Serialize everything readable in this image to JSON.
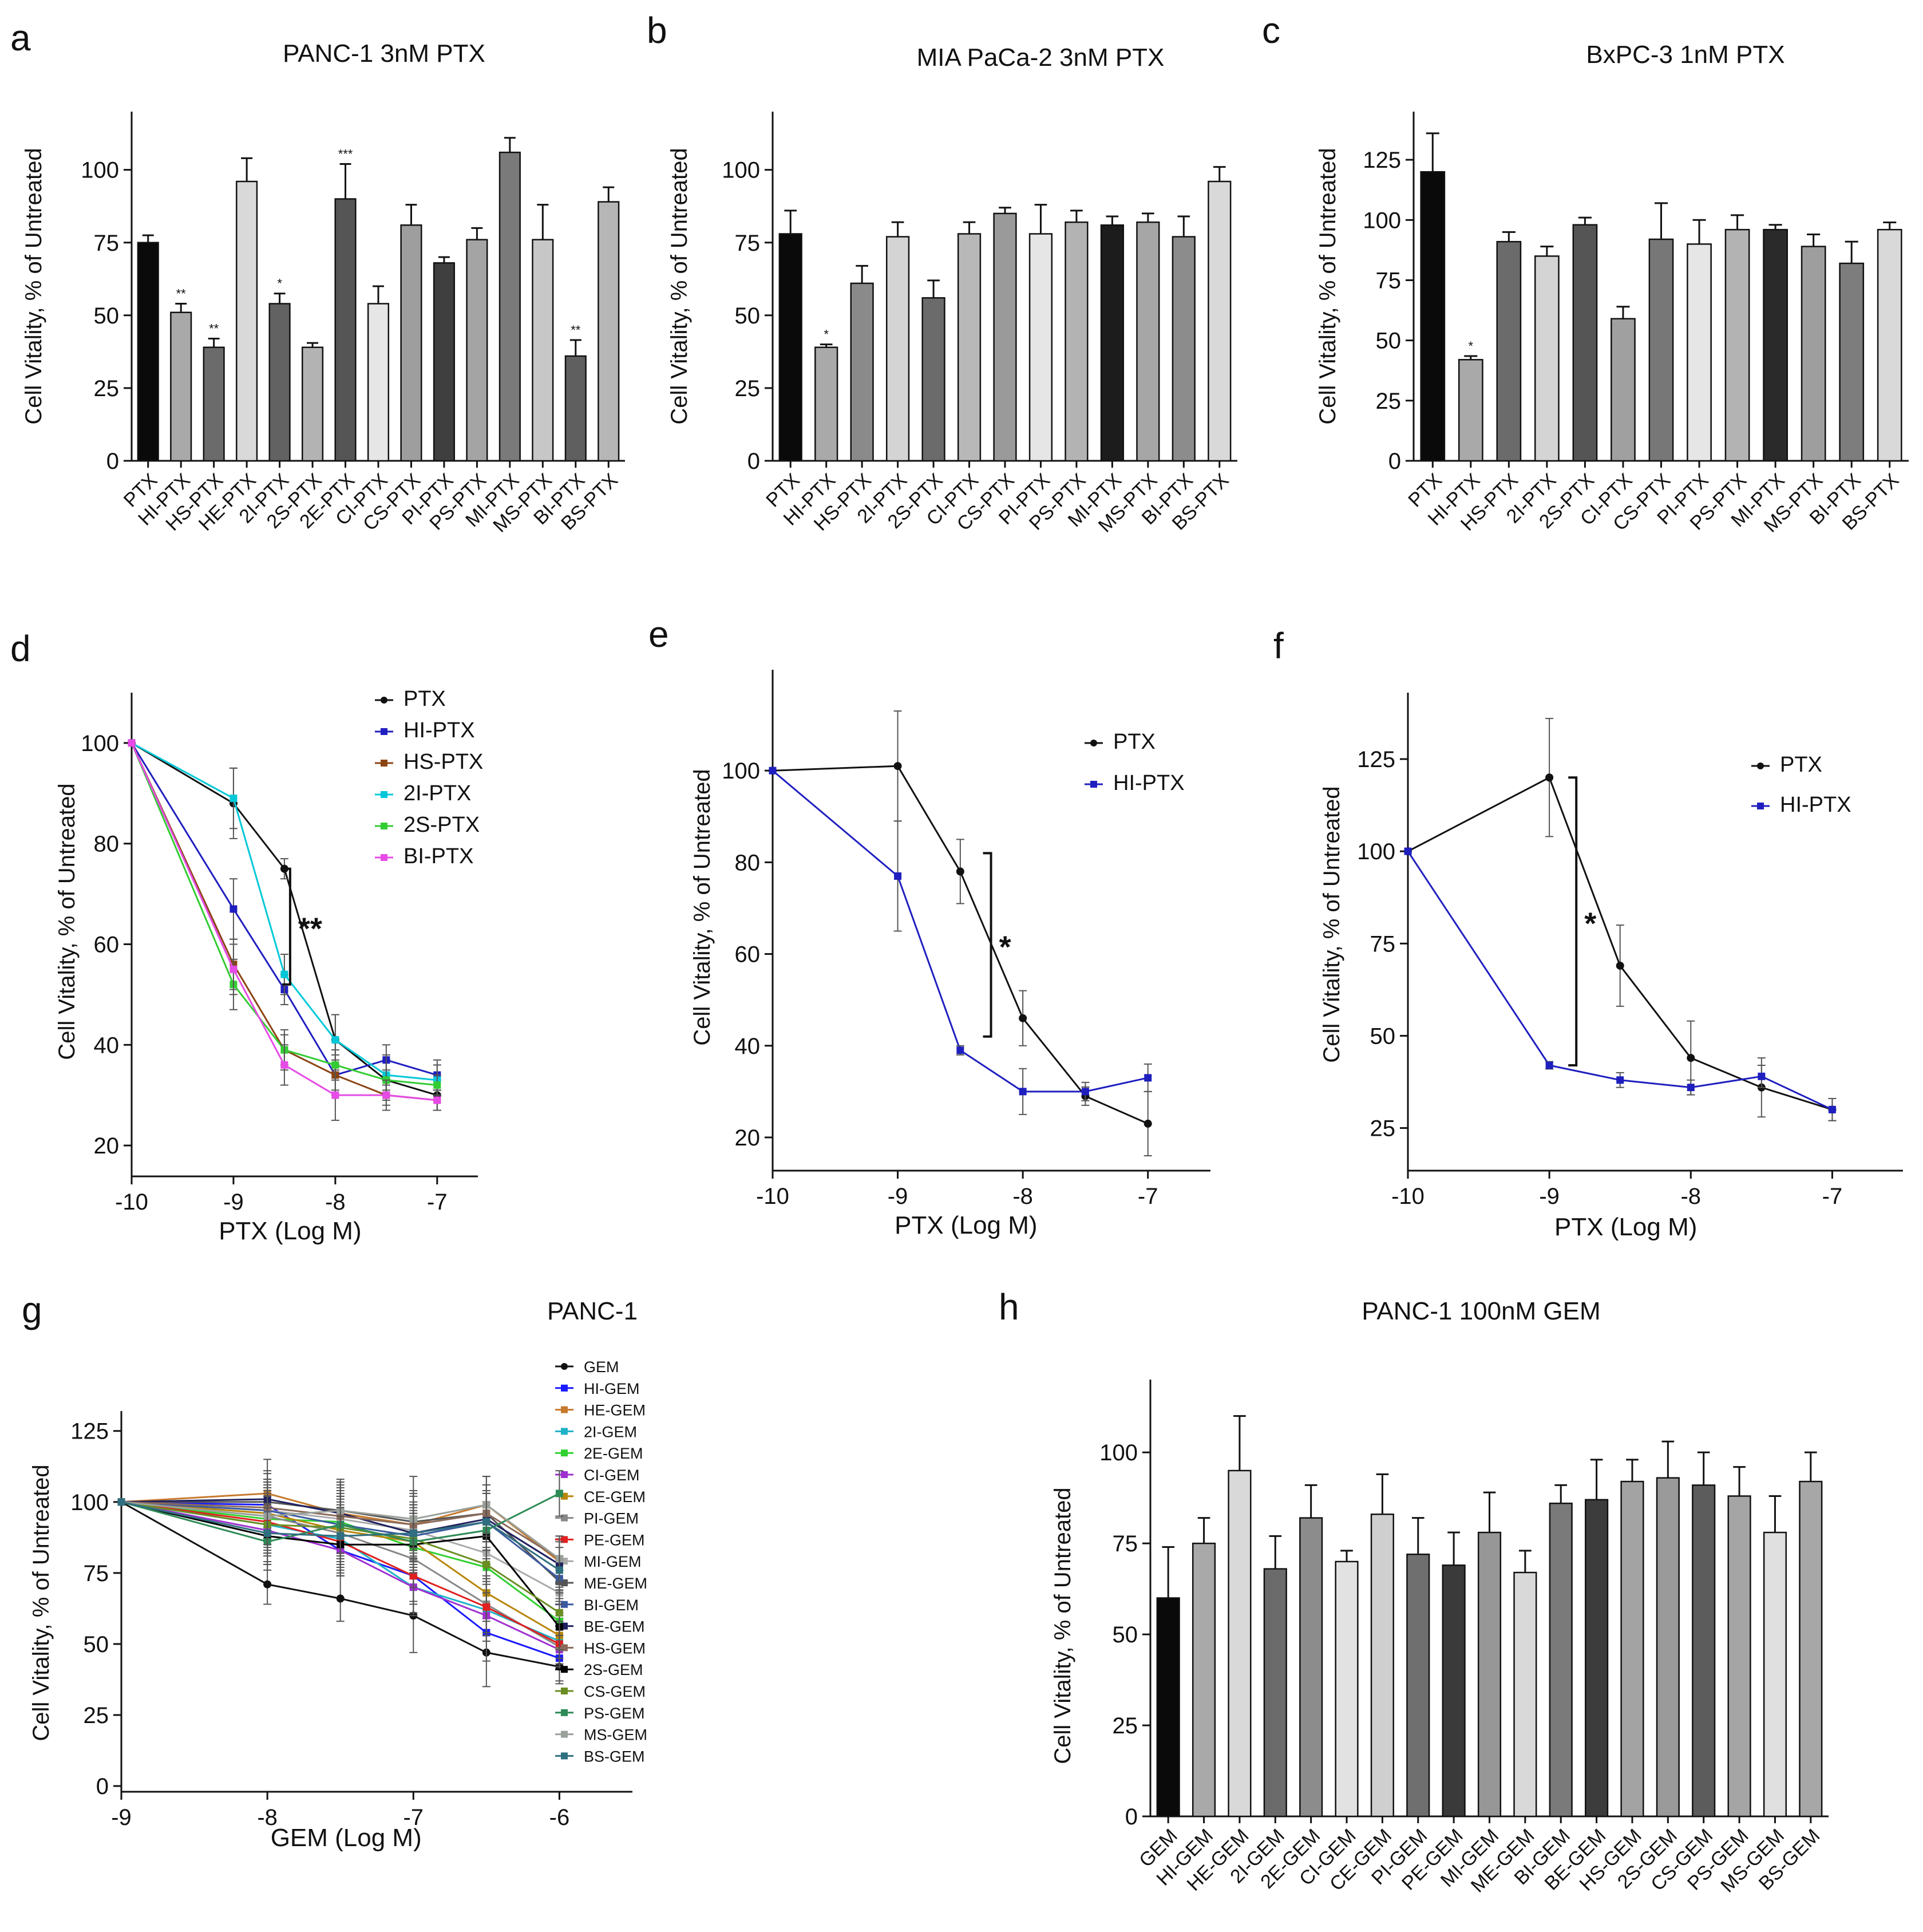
{
  "chart_data": [
    {
      "id": "a",
      "type": "bar",
      "letter": "a",
      "title": "PANC-1 3nM PTX",
      "ylabel": "Cell Vitality, % of Untreated",
      "xlabel": "",
      "ylim": [
        0,
        120
      ],
      "yticks": [
        0,
        25,
        50,
        75,
        100
      ],
      "categories": [
        "PTX",
        "HI-PTX",
        "HS-PTX",
        "HE-PTX",
        "2I-PTX",
        "2S-PTX",
        "2E-PTX",
        "CI-PTX",
        "CS-PTX",
        "PI-PTX",
        "PS-PTX",
        "MI-PTX",
        "MS-PTX",
        "BI-PTX",
        "BS-PTX"
      ],
      "values": [
        75,
        51,
        39,
        96,
        54,
        39,
        90,
        54,
        81,
        68,
        76,
        106,
        76,
        36,
        89
      ],
      "errors": [
        2.5,
        3,
        3,
        8,
        3.5,
        1.5,
        12,
        6,
        7,
        2,
        4,
        5,
        12,
        5.5,
        5
      ],
      "colors": [
        "#0a0a0a",
        "#a9a9a9",
        "#6b6b6b",
        "#d9d9d9",
        "#626262",
        "#b3b3b3",
        "#555555",
        "#e6e6e6",
        "#9e9e9e",
        "#3f3f3f",
        "#a4a4a4",
        "#7a7a7a",
        "#c7c7c7",
        "#5f5f5f",
        "#b6b6b6"
      ],
      "annotations": [
        "",
        "**",
        "**",
        "",
        "*",
        "",
        "***",
        "",
        "",
        "",
        "",
        "",
        "",
        "**",
        ""
      ]
    },
    {
      "id": "b",
      "type": "bar",
      "letter": "b",
      "title": "MIA PaCa-2 3nM PTX",
      "ylabel": "Cell Vitality, % of Untreated",
      "xlabel": "",
      "ylim": [
        0,
        120
      ],
      "yticks": [
        0,
        25,
        50,
        75,
        100
      ],
      "categories": [
        "PTX",
        "HI-PTX",
        "HS-PTX",
        "2I-PTX",
        "2S-PTX",
        "CI-PTX",
        "CS-PTX",
        "PI-PTX",
        "PS-PTX",
        "MI-PTX",
        "MS-PTX",
        "BI-PTX",
        "BS-PTX"
      ],
      "values": [
        78,
        39,
        61,
        77,
        56,
        78,
        85,
        78,
        82,
        81,
        82,
        77,
        96
      ],
      "errors": [
        8,
        1,
        6,
        5,
        6,
        4,
        2,
        10,
        4,
        3,
        3,
        7,
        5
      ],
      "colors": [
        "#0a0a0a",
        "#a9a9a9",
        "#8a8a8a",
        "#d4d4d4",
        "#6b6b6b",
        "#b8b8b8",
        "#9a9a9a",
        "#e6e6e6",
        "#b3b3b3",
        "#1c1c1c",
        "#a6a6a6",
        "#8c8c8c",
        "#d9d9d9"
      ],
      "annotations": [
        "",
        "*",
        "",
        "",
        "",
        "",
        "",
        "",
        "",
        "",
        "",
        "",
        ""
      ]
    },
    {
      "id": "c",
      "type": "bar",
      "letter": "c",
      "title": "BxPC-3 1nM PTX",
      "ylabel": "Cell Vitality, % of Untreated",
      "xlabel": "",
      "ylim": [
        0,
        145
      ],
      "yticks": [
        0,
        25,
        50,
        75,
        100,
        125
      ],
      "categories": [
        "PTX",
        "HI-PTX",
        "HS-PTX",
        "2I-PTX",
        "2S-PTX",
        "CI-PTX",
        "CS-PTX",
        "PI-PTX",
        "PS-PTX",
        "MI-PTX",
        "MS-PTX",
        "BI-PTX",
        "BS-PTX"
      ],
      "values": [
        120,
        42,
        91,
        85,
        98,
        59,
        92,
        90,
        96,
        96,
        89,
        82,
        96
      ],
      "errors": [
        16,
        1.5,
        4,
        4,
        3,
        5,
        15,
        10,
        6,
        2,
        5,
        9,
        3
      ],
      "colors": [
        "#0a0a0a",
        "#a9a9a9",
        "#6b6b6b",
        "#d4d4d4",
        "#555555",
        "#a0a0a0",
        "#777777",
        "#e6e6e6",
        "#b3b3b3",
        "#2a2a2a",
        "#9e9e9e",
        "#7d7d7d",
        "#d9d9d9"
      ],
      "annotations": [
        "",
        "*",
        "",
        "",
        "",
        "",
        "",
        "",
        "",
        "",
        "",
        "",
        ""
      ]
    },
    {
      "id": "d",
      "type": "line",
      "letter": "d",
      "title": "",
      "ylabel": "Cell Vitality, % of Untreated",
      "xlabel": "PTX  (Log M)",
      "xlim": [
        -10,
        -6.6
      ],
      "ylim": [
        15,
        110
      ],
      "xticks": [
        -10,
        -9,
        -8,
        -7
      ],
      "yticks": [
        20,
        40,
        60,
        80,
        100
      ],
      "x": [
        -10,
        -9,
        -8.5,
        -8,
        -7.5,
        -7
      ],
      "series": [
        {
          "name": "PTX",
          "color": "#111111",
          "values": [
            100,
            88,
            75,
            41,
            33,
            30
          ],
          "errors": [
            0,
            7,
            2,
            5,
            4,
            3
          ]
        },
        {
          "name": "HI-PTX",
          "color": "#1f1fbf",
          "values": [
            100,
            67,
            51,
            34,
            37,
            34
          ],
          "errors": [
            0,
            6,
            3,
            4,
            3,
            3
          ]
        },
        {
          "name": "HS-PTX",
          "color": "#8b4513",
          "values": [
            100,
            56,
            39,
            34,
            30,
            29
          ],
          "errors": [
            0,
            5,
            4,
            3,
            2,
            2
          ]
        },
        {
          "name": "2I-PTX",
          "color": "#00c8d8",
          "values": [
            100,
            89,
            54,
            41,
            34,
            33
          ],
          "errors": [
            0,
            6,
            4,
            5,
            4,
            3
          ]
        },
        {
          "name": "2S-PTX",
          "color": "#33cc33",
          "values": [
            100,
            52,
            39,
            36,
            33,
            32
          ],
          "errors": [
            0,
            5,
            3,
            3,
            2,
            2
          ]
        },
        {
          "name": "BI-PTX",
          "color": "#e64be6",
          "values": [
            100,
            55,
            36,
            30,
            30,
            29
          ],
          "errors": [
            0,
            5,
            4,
            5,
            3,
            2
          ]
        }
      ],
      "bracket": {
        "x": -8.5,
        "y1": 52,
        "y2": 75,
        "label": "**"
      }
    },
    {
      "id": "e",
      "type": "line",
      "letter": "e",
      "title": "",
      "ylabel": "Cell Vitality,  %  of Untreated",
      "xlabel": "PTX  (Log M)",
      "xlim": [
        -10,
        -6.5
      ],
      "ylim": [
        14,
        122
      ],
      "xticks": [
        -10,
        -9,
        -8,
        -7
      ],
      "yticks": [
        20,
        40,
        60,
        80,
        100
      ],
      "x": [
        -10,
        -9,
        -8.5,
        -8,
        -7.5,
        -7
      ],
      "series": [
        {
          "name": "PTX",
          "color": "#111111",
          "values": [
            100,
            101,
            78,
            46,
            29,
            23
          ],
          "errors": [
            0,
            12,
            7,
            6,
            2,
            7
          ]
        },
        {
          "name": "HI-PTX",
          "color": "#1f1fbf",
          "values": [
            100,
            77,
            39,
            30,
            30,
            33
          ],
          "errors": [
            0,
            12,
            1,
            5,
            2,
            3
          ]
        }
      ],
      "bracket": {
        "x": -8.3,
        "y1": 42,
        "y2": 82,
        "label": "*"
      }
    },
    {
      "id": "f",
      "type": "line",
      "letter": "f",
      "title": "",
      "ylabel": "Cell Vitality,  %  of Untreated",
      "xlabel": "PTX (Log M)",
      "xlim": [
        -10,
        -6.5
      ],
      "ylim": [
        15,
        143
      ],
      "xticks": [
        -10,
        -9,
        -8,
        -7
      ],
      "yticks": [
        25,
        50,
        75,
        100,
        125
      ],
      "x": [
        -10,
        -9,
        -8.5,
        -8,
        -7.5,
        -7
      ],
      "series": [
        {
          "name": "PTX",
          "color": "#111111",
          "values": [
            100,
            120,
            69,
            44,
            36,
            30
          ],
          "errors": [
            0,
            16,
            11,
            10,
            8,
            3
          ]
        },
        {
          "name": "HI-PTX",
          "color": "#1f1fbf",
          "values": [
            100,
            42,
            38,
            36,
            39,
            30
          ],
          "errors": [
            0,
            1,
            2,
            2,
            3,
            3
          ]
        }
      ],
      "bracket": {
        "x": -8.85,
        "y1": 42,
        "y2": 120,
        "label": "*"
      }
    },
    {
      "id": "g",
      "type": "line",
      "letter": "g",
      "title": "PANC-1",
      "ylabel": "Cell Vitality, % of Untreated",
      "xlabel": "GEM (Log M)",
      "xlim": [
        -9,
        -5.5
      ],
      "ylim": [
        0,
        132
      ],
      "xticks": [
        -9,
        -8,
        -7,
        -6
      ],
      "yticks": [
        0,
        25,
        50,
        75,
        100,
        125
      ],
      "x": [
        -9,
        -8,
        -7.5,
        -7,
        -6.5,
        -6
      ],
      "series": [
        {
          "name": "GEM",
          "color": "#111111",
          "values": [
            100,
            71,
            66,
            60,
            47,
            42
          ],
          "errors": [
            0,
            7,
            8,
            13,
            12,
            6
          ]
        },
        {
          "name": "HI-GEM",
          "color": "#1a1aff",
          "values": [
            100,
            99,
            83,
            74,
            54,
            45
          ],
          "errors": [
            0,
            9,
            9,
            9,
            10,
            8
          ]
        },
        {
          "name": "HE-GEM",
          "color": "#c67a2c",
          "values": [
            100,
            103,
            96,
            92,
            99,
            79
          ],
          "errors": [
            0,
            12,
            12,
            17,
            10,
            8
          ]
        },
        {
          "name": "2I-GEM",
          "color": "#20b2c8",
          "values": [
            100,
            92,
            87,
            70,
            62,
            51
          ],
          "errors": [
            0,
            10,
            10,
            10,
            9,
            8
          ]
        },
        {
          "name": "2E-GEM",
          "color": "#30d030",
          "values": [
            100,
            94,
            93,
            84,
            77,
            58
          ],
          "errors": [
            0,
            10,
            10,
            10,
            9,
            8
          ]
        },
        {
          "name": "CI-GEM",
          "color": "#a030d0",
          "values": [
            100,
            90,
            83,
            70,
            60,
            48
          ],
          "errors": [
            0,
            9,
            9,
            9,
            9,
            7
          ]
        },
        {
          "name": "CE-GEM",
          "color": "#b8860b",
          "values": [
            100,
            96,
            90,
            86,
            68,
            53
          ],
          "errors": [
            0,
            10,
            10,
            10,
            10,
            8
          ]
        },
        {
          "name": "PI-GEM",
          "color": "#888888",
          "values": [
            100,
            95,
            89,
            80,
            64,
            49
          ],
          "errors": [
            0,
            10,
            10,
            10,
            10,
            8
          ]
        },
        {
          "name": "PE-GEM",
          "color": "#e02020",
          "values": [
            100,
            93,
            86,
            74,
            63,
            50
          ],
          "errors": [
            0,
            10,
            10,
            10,
            10,
            8
          ]
        },
        {
          "name": "MI-GEM",
          "color": "#aaaaaa",
          "values": [
            100,
            97,
            94,
            90,
            82,
            68
          ],
          "errors": [
            0,
            10,
            10,
            10,
            10,
            8
          ]
        },
        {
          "name": "ME-GEM",
          "color": "#555555",
          "values": [
            100,
            100,
            97,
            93,
            96,
            72
          ],
          "errors": [
            0,
            10,
            10,
            10,
            10,
            8
          ]
        },
        {
          "name": "BI-GEM",
          "color": "#3a5aa0",
          "values": [
            100,
            97,
            92,
            88,
            93,
            73
          ],
          "errors": [
            0,
            10,
            10,
            10,
            10,
            8
          ]
        },
        {
          "name": "BE-GEM",
          "color": "#202060",
          "values": [
            100,
            101,
            96,
            89,
            94,
            78
          ],
          "errors": [
            0,
            10,
            10,
            10,
            10,
            8
          ]
        },
        {
          "name": "HS-GEM",
          "color": "#8b6a5a",
          "values": [
            100,
            98,
            95,
            92,
            96,
            80
          ],
          "errors": [
            0,
            10,
            10,
            10,
            10,
            8
          ]
        },
        {
          "name": "2S-GEM",
          "color": "#000000",
          "values": [
            100,
            88,
            85,
            85,
            88,
            56
          ],
          "errors": [
            0,
            10,
            10,
            10,
            10,
            8
          ]
        },
        {
          "name": "CS-GEM",
          "color": "#6b8e23",
          "values": [
            100,
            92,
            91,
            87,
            78,
            61
          ],
          "errors": [
            0,
            10,
            10,
            10,
            10,
            8
          ]
        },
        {
          "name": "PS-GEM",
          "color": "#2e8b57",
          "values": [
            100,
            86,
            92,
            86,
            90,
            103
          ],
          "errors": [
            0,
            10,
            10,
            10,
            10,
            8
          ]
        },
        {
          "name": "MS-GEM",
          "color": "#9aa09a",
          "values": [
            100,
            95,
            97,
            94,
            99,
            80
          ],
          "errors": [
            0,
            10,
            10,
            10,
            10,
            8
          ]
        },
        {
          "name": "BS-GEM",
          "color": "#2f6f7f",
          "values": [
            100,
            89,
            88,
            89,
            93,
            76
          ],
          "errors": [
            0,
            10,
            10,
            10,
            10,
            8
          ]
        }
      ]
    },
    {
      "id": "h",
      "type": "bar",
      "letter": "h",
      "title": "PANC-1 100nM GEM",
      "ylabel": "Cell Vitality, % of Untreated",
      "xlabel": "",
      "ylim": [
        0,
        120
      ],
      "yticks": [
        0,
        25,
        50,
        75,
        100
      ],
      "categories": [
        "GEM",
        "HI-GEM",
        "HE-GEM",
        "2I-GEM",
        "2E-GEM",
        "CI-GEM",
        "CE-GEM",
        "PI-GEM",
        "PE-GEM",
        "MI-GEM",
        "ME-GEM",
        "BI-GEM",
        "BE-GEM",
        "HS-GEM",
        "2S-GEM",
        "CS-GEM",
        "PS-GEM",
        "MS-GEM",
        "BS-GEM"
      ],
      "values": [
        60,
        75,
        95,
        68,
        82,
        70,
        83,
        72,
        69,
        78,
        67,
        86,
        87,
        92,
        93,
        91,
        88,
        78,
        92
      ],
      "errors": [
        14,
        7,
        15,
        9,
        9,
        3,
        11,
        10,
        9,
        11,
        6,
        5,
        11,
        6,
        10,
        9,
        8,
        10,
        8
      ],
      "colors": [
        "#0a0a0a",
        "#a9a9a9",
        "#d9d9d9",
        "#6b6b6b",
        "#8c8c8c",
        "#e2e2e2",
        "#cfcfcf",
        "#6f6f6f",
        "#3a3a3a",
        "#979797",
        "#d9d9d9",
        "#7a7a7a",
        "#3c3c3c",
        "#a3a3a3",
        "#9a9a9a",
        "#5c5c5c",
        "#a5a5a5",
        "#e0e0e0",
        "#a7a7a7"
      ],
      "annotations": []
    }
  ]
}
